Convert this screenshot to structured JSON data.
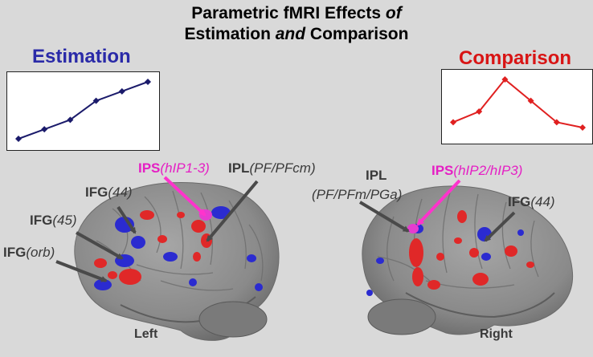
{
  "title": {
    "line1_a": "Parametric fMRI Effects ",
    "line1_b": "of",
    "line2_a": "Estimation ",
    "line2_b": "and",
    "line2_c": " Comparison"
  },
  "estimation": {
    "label": "Estimation",
    "color": "#1b1b6b",
    "values": [
      1,
      2,
      3,
      5,
      6,
      7
    ]
  },
  "comparison": {
    "label": "Comparison",
    "color": "#e02020",
    "values": [
      2,
      3,
      6,
      4,
      2,
      1.5
    ]
  },
  "labels": {
    "ips_left_a": "IPS",
    "ips_left_b": "(hIP1-3)",
    "ipl_left_a": "IPL",
    "ipl_left_b": "(PF/PFcm)",
    "ifg44_left_a": "IFG",
    "ifg44_left_b": "(44)",
    "ifg45_a": "IFG",
    "ifg45_b": "(45)",
    "ifgorb_a": "IFG",
    "ifgorb_b": "(orb)",
    "ipl_right_a": "IPL",
    "ipl_right_b": "(PF/PFm/PGa)",
    "ips_right_a": "IPS",
    "ips_right_b": "(hIP2/hIP3)",
    "ifg44_right_a": "IFG",
    "ifg44_right_b": "(44)",
    "left": "Left",
    "right": "Right"
  },
  "colors": {
    "blue_activation": "#2b2bd0",
    "red_activation": "#e02828",
    "pink_arrow": "#ff33cc",
    "gray_arrow": "#4a4a4a",
    "brain": "#8f8f8f"
  }
}
